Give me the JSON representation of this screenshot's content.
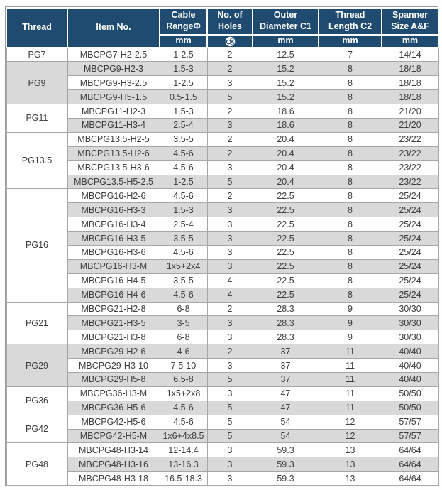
{
  "colors": {
    "header_bg": "#1f4b70",
    "row_shade": "#d9d9d9",
    "grid": "#a6a6a6",
    "text": "#3d3d3d"
  },
  "table": {
    "columns": [
      {
        "label": "Thread",
        "sub": ""
      },
      {
        "label": "Item No.",
        "sub": ""
      },
      {
        "label": "Cable RangeΦ",
        "sub": "mm"
      },
      {
        "label": "No. of Holes",
        "sub": "",
        "sub_icon": "multi-hole-insert-icon"
      },
      {
        "label": "Outer Diameter C1",
        "sub": "mm"
      },
      {
        "label": "Thread Length C2",
        "sub": "mm"
      },
      {
        "label": "Spanner Size A&F",
        "sub": "mm"
      }
    ],
    "groups": [
      {
        "thread": "PG7",
        "rows": [
          [
            "MBCPG7-H2-2.5",
            "1-2.5",
            "2",
            "12.5",
            "7",
            "14/14"
          ]
        ]
      },
      {
        "thread": "PG9",
        "rows": [
          [
            "MBCPG9-H2-3",
            "1.5-3",
            "2",
            "15.2",
            "8",
            "18/18"
          ],
          [
            "MBCPG9-H3-2.5",
            "1-2.5",
            "3",
            "15.2",
            "8",
            "18/18"
          ],
          [
            "MBCPG9-H5-1.5",
            "0.5-1.5",
            "5",
            "15.2",
            "8",
            "18/18"
          ]
        ]
      },
      {
        "thread": "PG11",
        "rows": [
          [
            "MBCPG11-H2-3",
            "1.5-3",
            "2",
            "18.6",
            "8",
            "21/20"
          ],
          [
            "MBCPG11-H3-4",
            "2.5-4",
            "3",
            "18.6",
            "8",
            "21/20"
          ]
        ]
      },
      {
        "thread": "PG13.5",
        "rows": [
          [
            "MBCPG13.5-H2-5",
            "3.5-5",
            "2",
            "20.4",
            "8",
            "23/22"
          ],
          [
            "MBCPG13.5-H2-6",
            "4.5-6",
            "2",
            "20.4",
            "8",
            "23/22"
          ],
          [
            "MBCPG13.5-H3-6",
            "4.5-6",
            "3",
            "20.4",
            "8",
            "23/22"
          ],
          [
            "MBCPG13.5-H5-2.5",
            "1-2.5",
            "5",
            "20.4",
            "8",
            "23/22"
          ]
        ]
      },
      {
        "thread": "PG16",
        "rows": [
          [
            "MBCPG16-H2-6",
            "4.5-6",
            "2",
            "22.5",
            "8",
            "25/24"
          ],
          [
            "MBCPG16-H3-3",
            "1.5-3",
            "3",
            "22.5",
            "8",
            "25/24"
          ],
          [
            "MBCPG16-H3-4",
            "2.5-4",
            "3",
            "22.5",
            "8",
            "25/24"
          ],
          [
            "MBCPG16-H3-5",
            "3.5-5",
            "3",
            "22.5",
            "8",
            "25/24"
          ],
          [
            "MBCPG16-H3-6",
            "4.5-6",
            "3",
            "22.5",
            "8",
            "25/24"
          ],
          [
            "MBCPG16-H3-M",
            "1x5+2x4",
            "3",
            "22.5",
            "8",
            "25/24"
          ],
          [
            "MBCPG16-H4-5",
            "3.5-5",
            "4",
            "22.5",
            "8",
            "25/24"
          ],
          [
            "MBCPG16-H4-6",
            "4.5-6",
            "4",
            "22.5",
            "8",
            "25/24"
          ]
        ]
      },
      {
        "thread": "PG21",
        "rows": [
          [
            "MBCPG21-H2-8",
            "6-8",
            "2",
            "28.3",
            "9",
            "30/30"
          ],
          [
            "MBCPG21-H3-5",
            "3-5",
            "3",
            "28.3",
            "9",
            "30/30"
          ],
          [
            "MBCPG21-H3-8",
            "6-8",
            "3",
            "28.3",
            "9",
            "30/30"
          ]
        ]
      },
      {
        "thread": "PG29",
        "rows": [
          [
            "MBCPG29-H2-6",
            "4-6",
            "2",
            "37",
            "11",
            "40/40"
          ],
          [
            "MBCPG29-H3-10",
            "7.5-10",
            "3",
            "37",
            "11",
            "40/40"
          ],
          [
            "MBCPG29-H5-8",
            "6.5-8",
            "5",
            "37",
            "11",
            "40/40"
          ]
        ]
      },
      {
        "thread": "PG36",
        "rows": [
          [
            "MBCPG36-H3-M",
            "1x5+2x8",
            "3",
            "47",
            "11",
            "50/50"
          ],
          [
            "MBCPG36-H5-6",
            "4.5-6",
            "5",
            "47",
            "11",
            "50/50"
          ]
        ]
      },
      {
        "thread": "PG42",
        "rows": [
          [
            "MBCPG42-H5-6",
            "4.5-6",
            "5",
            "54",
            "12",
            "57/57"
          ],
          [
            "MBCPG42-H5-M",
            "1x6+4x8.5",
            "5",
            "54",
            "12",
            "57/57"
          ]
        ]
      },
      {
        "thread": "PG48",
        "rows": [
          [
            "MBCPG48-H3-14",
            "12-14.4",
            "3",
            "59.3",
            "13",
            "64/64"
          ],
          [
            "MBCPG48-H3-16",
            "13-16.3",
            "3",
            "59.3",
            "13",
            "64/64"
          ],
          [
            "MBCPG48-H3-18",
            "16.5-18.3",
            "3",
            "59.3",
            "13",
            "64/64"
          ]
        ]
      }
    ]
  }
}
